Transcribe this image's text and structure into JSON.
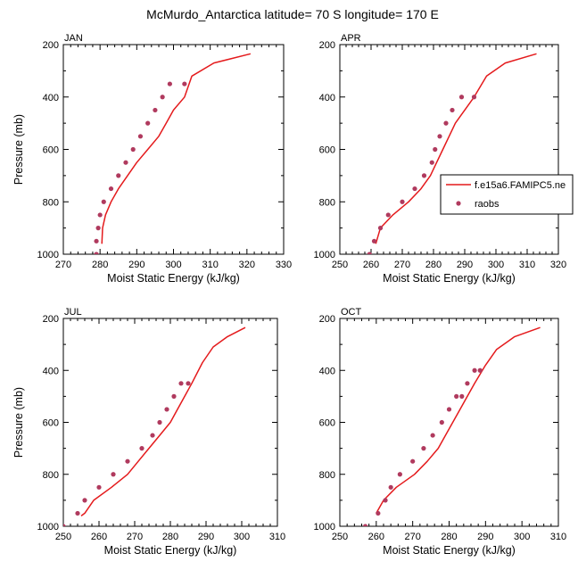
{
  "title": "McMurdo_Antarctica  latitude= 70 S longitude= 170 E",
  "legend": {
    "model_label": "f.e15a6.FAMIPC5.ne",
    "obs_label": "raobs"
  },
  "colors": {
    "model": "#e41a1c",
    "obs": "#b03a5e"
  },
  "chart_data": [
    {
      "type": "line",
      "panel": "JAN",
      "xlabel": "Moist Static Energy (kJ/kg)",
      "ylabel": "Pressure (mb)",
      "xlim": [
        270,
        330
      ],
      "ylim": [
        1000,
        200
      ],
      "y_reversed": true,
      "xticks": [
        270,
        280,
        290,
        300,
        310,
        320,
        330
      ],
      "yticks": [
        200,
        400,
        600,
        800,
        1000
      ],
      "series": [
        {
          "kind": "line",
          "x": [
            280.5,
            280.7,
            281.5,
            283,
            285,
            287.5,
            290,
            293,
            296,
            298,
            300,
            303,
            305,
            311,
            321
          ],
          "y": [
            960,
            900,
            850,
            800,
            750,
            700,
            650,
            600,
            550,
            500,
            450,
            400,
            320,
            270,
            235
          ]
        },
        {
          "kind": "points",
          "x": [
            279,
            279,
            279.5,
            280,
            281,
            283,
            285,
            287,
            289,
            291,
            293,
            295,
            297,
            299,
            303
          ],
          "y": [
            1000,
            950,
            900,
            850,
            800,
            750,
            700,
            650,
            600,
            550,
            500,
            450,
            400,
            350,
            350
          ]
        }
      ]
    },
    {
      "type": "line",
      "panel": "APR",
      "xlabel": "Moist Static Energy (kJ/kg)",
      "ylabel": "",
      "xlim": [
        250,
        320
      ],
      "ylim": [
        1000,
        200
      ],
      "y_reversed": true,
      "xticks": [
        250,
        260,
        270,
        280,
        290,
        300,
        310,
        320
      ],
      "yticks": [
        200,
        400,
        600,
        800,
        1000
      ],
      "series": [
        {
          "kind": "line",
          "x": [
            261.5,
            263,
            267,
            272,
            276,
            279,
            281,
            283,
            285,
            287,
            290,
            293,
            297,
            303,
            313
          ],
          "y": [
            960,
            900,
            850,
            800,
            750,
            700,
            650,
            600,
            550,
            500,
            450,
            400,
            320,
            270,
            235
          ]
        },
        {
          "kind": "points",
          "x": [
            259.5,
            261,
            263,
            265.5,
            270,
            274,
            277,
            279.5,
            280.5,
            282,
            284,
            286,
            289,
            293
          ],
          "y": [
            1000,
            950,
            900,
            850,
            800,
            750,
            700,
            650,
            600,
            550,
            500,
            450,
            400,
            400
          ]
        }
      ]
    },
    {
      "type": "line",
      "panel": "JUL",
      "xlabel": "Moist Static Energy (kJ/kg)",
      "ylabel": "Pressure (mb)",
      "xlim": [
        250,
        310
      ],
      "ylim": [
        1000,
        200
      ],
      "y_reversed": true,
      "xticks": [
        250,
        260,
        270,
        280,
        290,
        300,
        310
      ],
      "yticks": [
        200,
        400,
        600,
        800,
        1000
      ],
      "series": [
        {
          "kind": "line",
          "x": [
            255,
            256,
            258.5,
            263.5,
            268,
            271,
            274,
            277,
            280,
            282,
            284,
            286,
            289,
            292,
            296,
            301
          ],
          "y": [
            960,
            950,
            900,
            850,
            800,
            750,
            700,
            650,
            600,
            550,
            500,
            450,
            370,
            310,
            270,
            235
          ]
        },
        {
          "kind": "points",
          "x": [
            250,
            254,
            256,
            260,
            264,
            268,
            272,
            275,
            277,
            279,
            281,
            283,
            285
          ],
          "y": [
            1000,
            950,
            900,
            850,
            800,
            750,
            700,
            650,
            600,
            550,
            500,
            450,
            450
          ]
        }
      ]
    },
    {
      "type": "line",
      "panel": "OCT",
      "xlabel": "Moist Static Energy (kJ/kg)",
      "ylabel": "",
      "xlim": [
        250,
        310
      ],
      "ylim": [
        1000,
        200
      ],
      "y_reversed": true,
      "xticks": [
        250,
        260,
        270,
        280,
        290,
        300,
        310
      ],
      "yticks": [
        200,
        400,
        600,
        800,
        1000
      ],
      "series": [
        {
          "kind": "line",
          "x": [
            260,
            262,
            265.5,
            270.5,
            274,
            277,
            279,
            281,
            283,
            285,
            287,
            290,
            293,
            298,
            305
          ],
          "y": [
            950,
            900,
            850,
            800,
            750,
            700,
            650,
            600,
            550,
            500,
            450,
            380,
            320,
            270,
            235
          ]
        },
        {
          "kind": "points",
          "x": [
            257,
            260.5,
            262.5,
            264,
            266.5,
            270,
            273,
            275.5,
            278,
            280,
            282,
            283.5,
            285,
            287,
            288.5
          ],
          "y": [
            1000,
            950,
            900,
            850,
            800,
            750,
            700,
            650,
            600,
            550,
            500,
            500,
            450,
            400,
            400
          ]
        }
      ]
    }
  ]
}
